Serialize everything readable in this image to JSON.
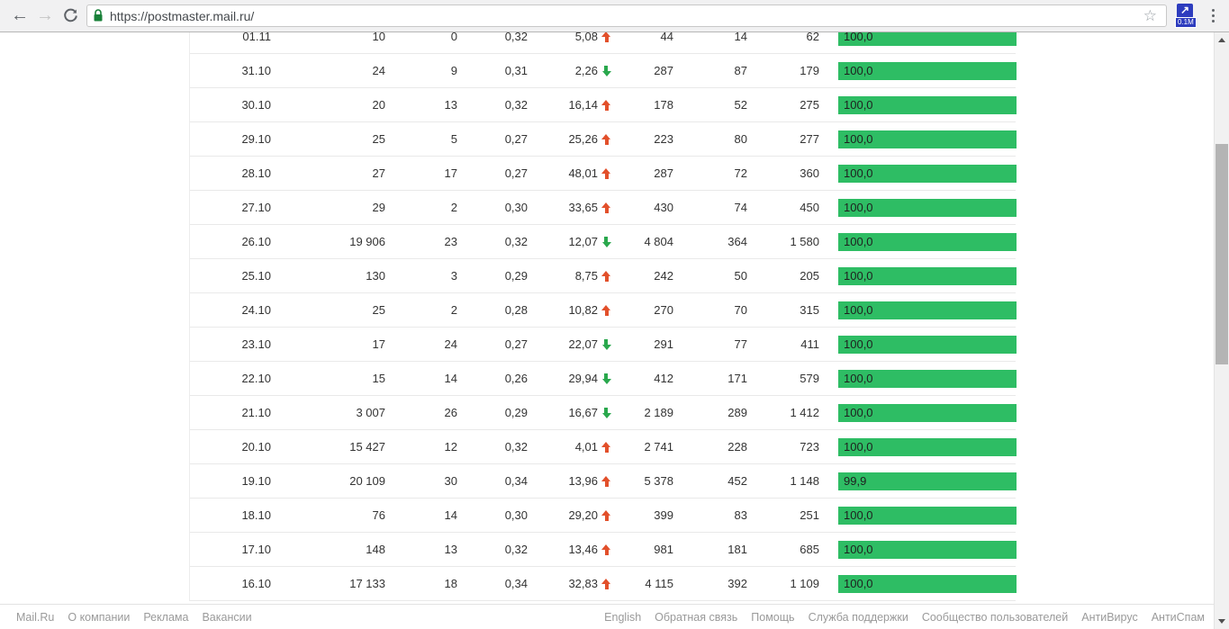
{
  "browser": {
    "url": "https://postmaster.mail.ru/",
    "extension_badge": "0.1M",
    "extension_glyph": "↗"
  },
  "table": {
    "rows": [
      {
        "date": "01.11",
        "v1": "10",
        "v2": "0",
        "v3": "0,32",
        "pct": "5,08",
        "trend": "up",
        "v4": "44",
        "v5": "14",
        "v6": "62",
        "bar": "100,0",
        "bar_pct": 100
      },
      {
        "date": "31.10",
        "v1": "24",
        "v2": "9",
        "v3": "0,31",
        "pct": "2,26",
        "trend": "down",
        "v4": "287",
        "v5": "87",
        "v6": "179",
        "bar": "100,0",
        "bar_pct": 100
      },
      {
        "date": "30.10",
        "v1": "20",
        "v2": "13",
        "v3": "0,32",
        "pct": "16,14",
        "trend": "up",
        "v4": "178",
        "v5": "52",
        "v6": "275",
        "bar": "100,0",
        "bar_pct": 100
      },
      {
        "date": "29.10",
        "v1": "25",
        "v2": "5",
        "v3": "0,27",
        "pct": "25,26",
        "trend": "up",
        "v4": "223",
        "v5": "80",
        "v6": "277",
        "bar": "100,0",
        "bar_pct": 100
      },
      {
        "date": "28.10",
        "v1": "27",
        "v2": "17",
        "v3": "0,27",
        "pct": "48,01",
        "trend": "up",
        "v4": "287",
        "v5": "72",
        "v6": "360",
        "bar": "100,0",
        "bar_pct": 100
      },
      {
        "date": "27.10",
        "v1": "29",
        "v2": "2",
        "v3": "0,30",
        "pct": "33,65",
        "trend": "up",
        "v4": "430",
        "v5": "74",
        "v6": "450",
        "bar": "100,0",
        "bar_pct": 100
      },
      {
        "date": "26.10",
        "v1": "19 906",
        "v2": "23",
        "v3": "0,32",
        "pct": "12,07",
        "trend": "down",
        "v4": "4 804",
        "v5": "364",
        "v6": "1 580",
        "bar": "100,0",
        "bar_pct": 100
      },
      {
        "date": "25.10",
        "v1": "130",
        "v2": "3",
        "v3": "0,29",
        "pct": "8,75",
        "trend": "up",
        "v4": "242",
        "v5": "50",
        "v6": "205",
        "bar": "100,0",
        "bar_pct": 100
      },
      {
        "date": "24.10",
        "v1": "25",
        "v2": "2",
        "v3": "0,28",
        "pct": "10,82",
        "trend": "up",
        "v4": "270",
        "v5": "70",
        "v6": "315",
        "bar": "100,0",
        "bar_pct": 100
      },
      {
        "date": "23.10",
        "v1": "17",
        "v2": "24",
        "v3": "0,27",
        "pct": "22,07",
        "trend": "down",
        "v4": "291",
        "v5": "77",
        "v6": "411",
        "bar": "100,0",
        "bar_pct": 100
      },
      {
        "date": "22.10",
        "v1": "15",
        "v2": "14",
        "v3": "0,26",
        "pct": "29,94",
        "trend": "down",
        "v4": "412",
        "v5": "171",
        "v6": "579",
        "bar": "100,0",
        "bar_pct": 100
      },
      {
        "date": "21.10",
        "v1": "3 007",
        "v2": "26",
        "v3": "0,29",
        "pct": "16,67",
        "trend": "down",
        "v4": "2 189",
        "v5": "289",
        "v6": "1 412",
        "bar": "100,0",
        "bar_pct": 100
      },
      {
        "date": "20.10",
        "v1": "15 427",
        "v2": "12",
        "v3": "0,32",
        "pct": "4,01",
        "trend": "up",
        "v4": "2 741",
        "v5": "228",
        "v6": "723",
        "bar": "100,0",
        "bar_pct": 100
      },
      {
        "date": "19.10",
        "v1": "20 109",
        "v2": "30",
        "v3": "0,34",
        "pct": "13,96",
        "trend": "up",
        "v4": "5 378",
        "v5": "452",
        "v6": "1 148",
        "bar": "99,9",
        "bar_pct": 99.9
      },
      {
        "date": "18.10",
        "v1": "76",
        "v2": "14",
        "v3": "0,30",
        "pct": "29,20",
        "trend": "up",
        "v4": "399",
        "v5": "83",
        "v6": "251",
        "bar": "100,0",
        "bar_pct": 100
      },
      {
        "date": "17.10",
        "v1": "148",
        "v2": "13",
        "v3": "0,32",
        "pct": "13,46",
        "trend": "up",
        "v4": "981",
        "v5": "181",
        "v6": "685",
        "bar": "100,0",
        "bar_pct": 100
      },
      {
        "date": "16.10",
        "v1": "17 133",
        "v2": "18",
        "v3": "0,34",
        "pct": "32,83",
        "trend": "up",
        "v4": "4 115",
        "v5": "392",
        "v6": "1 109",
        "bar": "100,0",
        "bar_pct": 100
      }
    ]
  },
  "footer": {
    "left_links": [
      "Mail.Ru",
      "О компании",
      "Реклама",
      "Вакансии"
    ],
    "right_links": [
      "English",
      "Обратная связь",
      "Помощь",
      "Служба поддержки",
      "Сообщество пользователей",
      "АнтиВирус",
      "АнтиСпам"
    ]
  },
  "colors": {
    "bar_green": "#2ebd64",
    "trend_up": "#e2502b",
    "trend_down": "#2aa84d",
    "lock_green": "#188038"
  }
}
